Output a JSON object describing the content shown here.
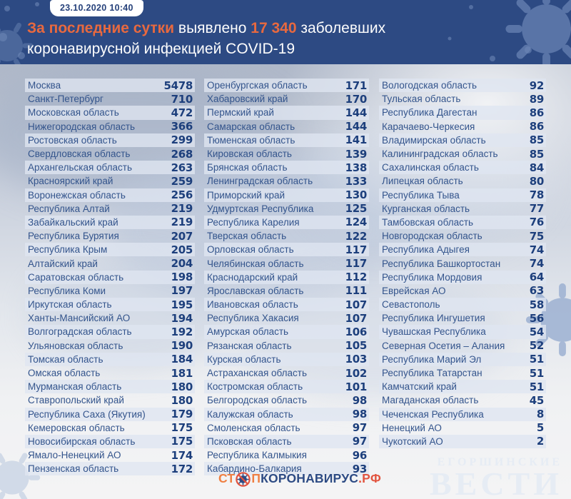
{
  "header": {
    "timestamp": "23.10.2020 10:40",
    "highlight1": "За последние сутки",
    "mid1": " выявлено ",
    "highlight2": "17 340",
    "mid2": " заболевших",
    "line2": "коронавирусной инфекцией COVID-19"
  },
  "logo": {
    "stop_prefix": "СТ",
    "stop_suffix": "П",
    "main": "КОРОНАВИРУС",
    "domain": ".РФ",
    "icon": "virus-prohibition-icon"
  },
  "watermark": {
    "line1": "ЕГОРШИНСКИЕ",
    "line2": "ВЕСТИ"
  },
  "colors": {
    "header_bg": "#2d4a83",
    "accent_orange": "#e8693f",
    "region_text": "#33548c",
    "value_text": "#1d3f7c",
    "row_stripe": "#dfe6f0",
    "logo_navy": "#2d4b84",
    "logo_red": "#e2543f",
    "logo_orange": "#ef7f42"
  },
  "chart_data": {
    "type": "table",
    "title": "За последние сутки выявлено 17 340 заболевших коронавирусной инфекцией COVID-19",
    "timestamp": "23.10.2020 10:40",
    "total_new_cases": 17340,
    "columns": [
      [
        {
          "region": "Москва",
          "value": 5478
        },
        {
          "region": "Санкт-Петербург",
          "value": 710
        },
        {
          "region": "Московская область",
          "value": 472
        },
        {
          "region": "Нижегородская область",
          "value": 366
        },
        {
          "region": "Ростовская область",
          "value": 299
        },
        {
          "region": "Свердловская область",
          "value": 268
        },
        {
          "region": "Архангельская область",
          "value": 263
        },
        {
          "region": "Красноярский край",
          "value": 259
        },
        {
          "region": "Воронежская область",
          "value": 256
        },
        {
          "region": "Республика Алтай",
          "value": 219
        },
        {
          "region": "Забайкальский край",
          "value": 219
        },
        {
          "region": "Республика Бурятия",
          "value": 207
        },
        {
          "region": "Республика Крым",
          "value": 205
        },
        {
          "region": "Алтайский край",
          "value": 204
        },
        {
          "region": "Саратовская область",
          "value": 198
        },
        {
          "region": "Республика Коми",
          "value": 197
        },
        {
          "region": "Иркутская область",
          "value": 195
        },
        {
          "region": "Ханты-Мансийский АО",
          "value": 194
        },
        {
          "region": "Волгоградская область",
          "value": 192
        },
        {
          "region": "Ульяновская область",
          "value": 190
        },
        {
          "region": "Томская область",
          "value": 184
        },
        {
          "region": "Омская область",
          "value": 181
        },
        {
          "region": "Мурманская область",
          "value": 180
        },
        {
          "region": "Ставропольский край",
          "value": 180
        },
        {
          "region": "Республика Саха (Якутия)",
          "value": 179
        },
        {
          "region": "Кемеровская область",
          "value": 175
        },
        {
          "region": "Новосибирская область",
          "value": 175
        },
        {
          "region": "Ямало-Ненецкий АО",
          "value": 174
        },
        {
          "region": "Пензенская область",
          "value": 172
        }
      ],
      [
        {
          "region": "Оренбургская область",
          "value": 171
        },
        {
          "region": "Хабаровский край",
          "value": 170
        },
        {
          "region": "Пермский край",
          "value": 144
        },
        {
          "region": "Самарская область",
          "value": 144
        },
        {
          "region": "Тюменская область",
          "value": 141
        },
        {
          "region": "Кировская область",
          "value": 139
        },
        {
          "region": "Брянская область",
          "value": 138
        },
        {
          "region": "Ленинградская область",
          "value": 133
        },
        {
          "region": "Приморский край",
          "value": 130
        },
        {
          "region": "Удмуртская Республика",
          "value": 125
        },
        {
          "region": "Республика Карелия",
          "value": 124
        },
        {
          "region": "Тверская область",
          "value": 122
        },
        {
          "region": "Орловская область",
          "value": 117
        },
        {
          "region": "Челябинская область",
          "value": 117
        },
        {
          "region": "Краснодарский край",
          "value": 112
        },
        {
          "region": "Ярославская область",
          "value": 111
        },
        {
          "region": "Ивановская область",
          "value": 107
        },
        {
          "region": "Республика Хакасия",
          "value": 107
        },
        {
          "region": "Амурская область",
          "value": 106
        },
        {
          "region": "Рязанская область",
          "value": 105
        },
        {
          "region": "Курская область",
          "value": 103
        },
        {
          "region": "Астраханская область",
          "value": 102
        },
        {
          "region": "Костромская область",
          "value": 101
        },
        {
          "region": "Белгородская область",
          "value": 98
        },
        {
          "region": "Калужская область",
          "value": 98
        },
        {
          "region": "Смоленская область",
          "value": 97
        },
        {
          "region": "Псковская область",
          "value": 97
        },
        {
          "region": "Республика Калмыкия",
          "value": 96
        },
        {
          "region": "Кабардино-Балкария",
          "value": 93
        }
      ],
      [
        {
          "region": "Вологодская область",
          "value": 92
        },
        {
          "region": "Тульская область",
          "value": 89
        },
        {
          "region": "Республика Дагестан",
          "value": 86
        },
        {
          "region": "Карачаево-Черкесия",
          "value": 86
        },
        {
          "region": "Владимирская область",
          "value": 85
        },
        {
          "region": "Калининградская область",
          "value": 85
        },
        {
          "region": "Сахалинская область",
          "value": 84
        },
        {
          "region": "Липецкая область",
          "value": 80
        },
        {
          "region": "Республика Тыва",
          "value": 78
        },
        {
          "region": "Курганская область",
          "value": 77
        },
        {
          "region": "Тамбовская область",
          "value": 76
        },
        {
          "region": "Новгородская область",
          "value": 75
        },
        {
          "region": "Республика Адыгея",
          "value": 74
        },
        {
          "region": "Республика Башкортостан",
          "value": 74
        },
        {
          "region": "Республика Мордовия",
          "value": 64
        },
        {
          "region": "Еврейская АО",
          "value": 63
        },
        {
          "region": "Севастополь",
          "value": 58
        },
        {
          "region": "Республика Ингушетия",
          "value": 56
        },
        {
          "region": "Чувашская Республика",
          "value": 54
        },
        {
          "region": "Северная Осетия – Алания",
          "value": 52
        },
        {
          "region": "Республика Марий Эл",
          "value": 51
        },
        {
          "region": "Республика Татарстан",
          "value": 51
        },
        {
          "region": "Камчатский край",
          "value": 51
        },
        {
          "region": "Магаданская область",
          "value": 45
        },
        {
          "region": "Чеченская Республика",
          "value": 8
        },
        {
          "region": "Ненецкий АО",
          "value": 5
        },
        {
          "region": "Чукотский АО",
          "value": 2
        }
      ]
    ]
  }
}
